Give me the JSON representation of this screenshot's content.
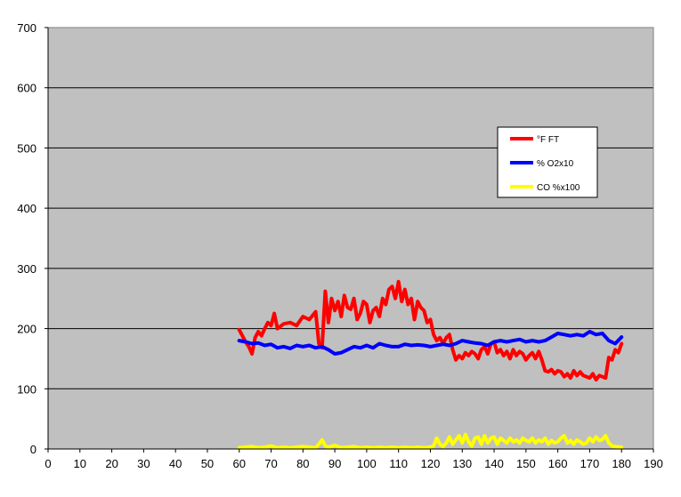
{
  "chart_data": {
    "type": "line",
    "title": "",
    "xlabel": "",
    "ylabel": "",
    "xlim": [
      0,
      190
    ],
    "ylim": [
      0,
      700
    ],
    "x_ticks": [
      0,
      10,
      20,
      30,
      40,
      50,
      60,
      70,
      80,
      90,
      100,
      110,
      120,
      130,
      140,
      150,
      160,
      170,
      180,
      190
    ],
    "y_ticks": [
      0,
      100,
      200,
      300,
      400,
      500,
      600,
      700
    ],
    "grid": "horizontal",
    "plot_background": "#c0c0c0",
    "legend": {
      "placement": "right"
    },
    "series": [
      {
        "name": "°F FT",
        "color": "#ff0000",
        "x": [
          60,
          62,
          63,
          64,
          65,
          66,
          67,
          68,
          69,
          70,
          71,
          72,
          74,
          76,
          78,
          80,
          82,
          84,
          85,
          86,
          87,
          88,
          89,
          90,
          91,
          92,
          93,
          94,
          95,
          96,
          97,
          98,
          99,
          100,
          101,
          102,
          103,
          104,
          105,
          106,
          107,
          108,
          109,
          110,
          111,
          112,
          113,
          114,
          115,
          116,
          117,
          118,
          119,
          120,
          121,
          122,
          123,
          124,
          125,
          126,
          127,
          128,
          129,
          130,
          131,
          132,
          133,
          134,
          135,
          136,
          137,
          138,
          139,
          140,
          141,
          142,
          143,
          144,
          145,
          146,
          147,
          148,
          149,
          150,
          151,
          152,
          153,
          154,
          155,
          156,
          157,
          158,
          159,
          160,
          161,
          162,
          163,
          164,
          165,
          166,
          167,
          168,
          169,
          170,
          171,
          172,
          173,
          174,
          175,
          176,
          177,
          178,
          179,
          180
        ],
        "values": [
          198,
          178,
          170,
          158,
          185,
          195,
          188,
          200,
          210,
          205,
          225,
          200,
          208,
          210,
          205,
          220,
          215,
          228,
          175,
          168,
          262,
          210,
          250,
          230,
          245,
          220,
          255,
          235,
          232,
          250,
          215,
          225,
          245,
          240,
          210,
          230,
          235,
          220,
          250,
          240,
          265,
          270,
          250,
          278,
          245,
          265,
          240,
          250,
          215,
          245,
          235,
          230,
          210,
          215,
          190,
          180,
          185,
          175,
          185,
          190,
          165,
          148,
          155,
          150,
          160,
          155,
          162,
          158,
          150,
          165,
          170,
          158,
          175,
          178,
          160,
          165,
          155,
          162,
          150,
          165,
          155,
          162,
          158,
          148,
          155,
          160,
          150,
          162,
          148,
          130,
          128,
          132,
          125,
          130,
          128,
          120,
          125,
          118,
          130,
          122,
          128,
          122,
          120,
          118,
          125,
          115,
          122,
          120,
          118,
          152,
          148,
          165,
          160,
          175
        ]
      },
      {
        "name": "% O2x10",
        "color": "#0000ff",
        "x": [
          60,
          62,
          64,
          66,
          68,
          70,
          72,
          74,
          76,
          78,
          80,
          82,
          84,
          86,
          88,
          90,
          92,
          94,
          96,
          98,
          100,
          102,
          104,
          106,
          108,
          110,
          112,
          114,
          116,
          118,
          120,
          122,
          124,
          126,
          128,
          130,
          132,
          134,
          136,
          138,
          140,
          142,
          144,
          146,
          148,
          150,
          152,
          154,
          156,
          158,
          160,
          162,
          164,
          166,
          168,
          170,
          172,
          174,
          176,
          178,
          180
        ],
        "values": [
          180,
          178,
          175,
          176,
          172,
          174,
          168,
          170,
          167,
          172,
          170,
          172,
          168,
          170,
          165,
          158,
          160,
          165,
          170,
          168,
          172,
          168,
          175,
          172,
          170,
          170,
          174,
          172,
          173,
          172,
          170,
          172,
          174,
          172,
          175,
          180,
          178,
          176,
          175,
          172,
          178,
          180,
          178,
          180,
          182,
          178,
          180,
          178,
          180,
          186,
          192,
          190,
          188,
          190,
          188,
          195,
          190,
          192,
          180,
          175,
          186
        ]
      },
      {
        "name": "CO %x100",
        "color": "#ffff00",
        "x": [
          60,
          62,
          64,
          66,
          68,
          70,
          72,
          74,
          76,
          78,
          80,
          82,
          84,
          85,
          86,
          87,
          88,
          90,
          92,
          94,
          96,
          98,
          100,
          102,
          104,
          106,
          108,
          110,
          112,
          114,
          116,
          118,
          120,
          121,
          122,
          123,
          124,
          125,
          126,
          127,
          128,
          129,
          130,
          131,
          132,
          133,
          134,
          135,
          136,
          137,
          138,
          139,
          140,
          141,
          142,
          143,
          144,
          145,
          146,
          147,
          148,
          149,
          150,
          151,
          152,
          153,
          154,
          155,
          156,
          157,
          158,
          159,
          160,
          161,
          162,
          163,
          164,
          165,
          166,
          167,
          168,
          169,
          170,
          171,
          172,
          173,
          174,
          175,
          176,
          177,
          178,
          180
        ],
        "values": [
          2,
          3,
          4,
          2,
          3,
          5,
          2,
          3,
          2,
          3,
          4,
          3,
          2,
          8,
          15,
          5,
          3,
          6,
          2,
          3,
          4,
          2,
          3,
          2,
          3,
          2,
          3,
          2,
          3,
          2,
          3,
          2,
          3,
          5,
          18,
          8,
          4,
          10,
          20,
          8,
          15,
          22,
          10,
          24,
          12,
          5,
          18,
          20,
          8,
          22,
          10,
          18,
          20,
          8,
          18,
          14,
          10,
          18,
          12,
          15,
          10,
          18,
          14,
          12,
          18,
          10,
          15,
          12,
          18,
          8,
          14,
          10,
          12,
          18,
          22,
          10,
          14,
          8,
          15,
          12,
          8,
          10,
          18,
          12,
          20,
          14,
          16,
          22,
          10,
          5,
          4,
          3
        ]
      }
    ]
  }
}
